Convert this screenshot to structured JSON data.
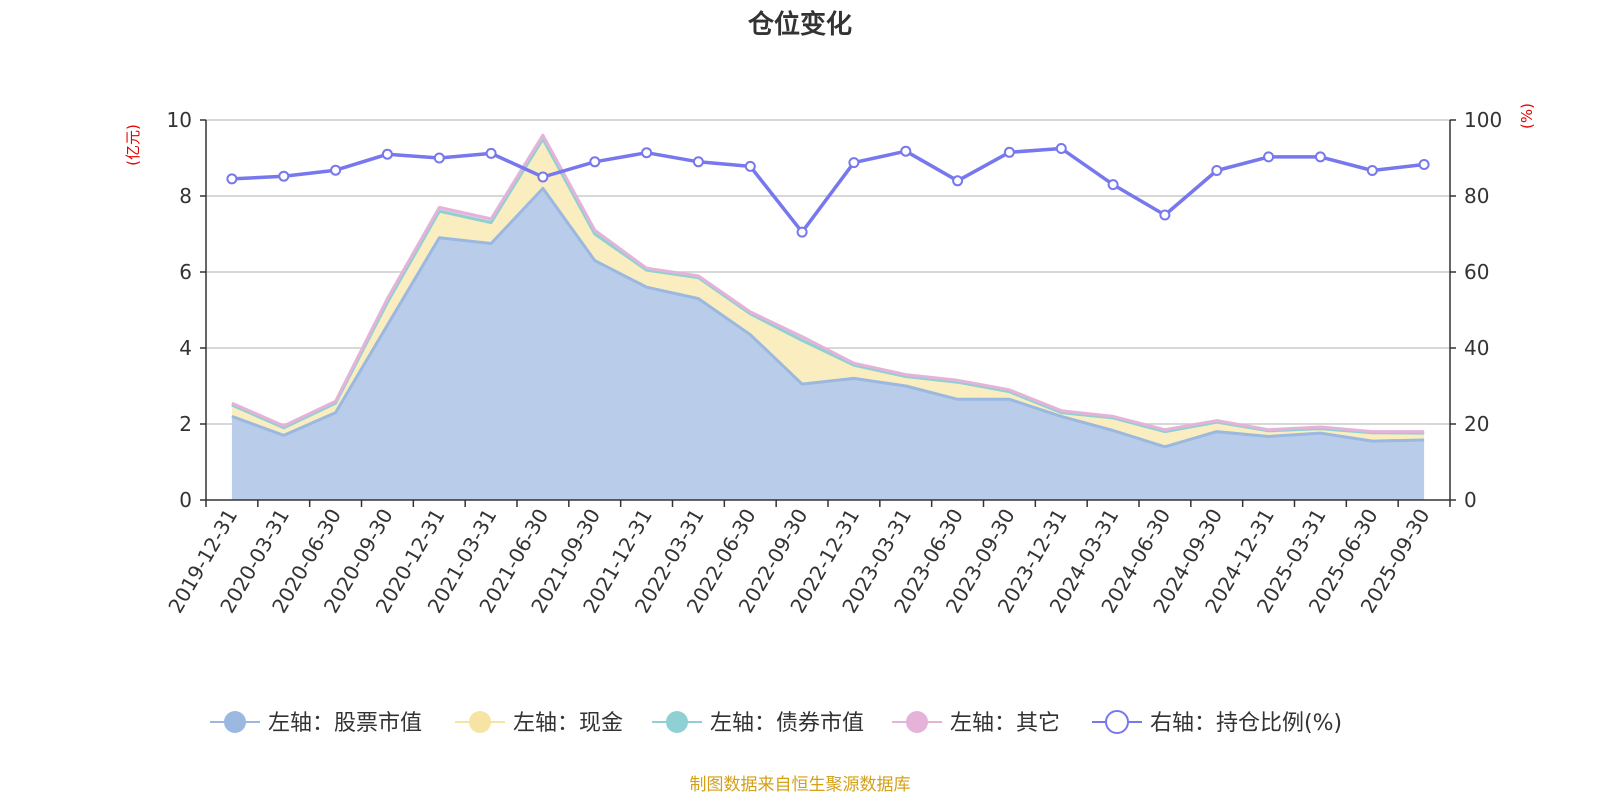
{
  "chart_data": {
    "type": "area",
    "title": "仓位变化",
    "categories": [
      "2019-12-31",
      "2020-03-31",
      "2020-06-30",
      "2020-09-30",
      "2020-12-31",
      "2021-03-31",
      "2021-06-30",
      "2021-09-30",
      "2021-12-31",
      "2022-03-31",
      "2022-06-30",
      "2022-09-30",
      "2022-12-31",
      "2023-03-31",
      "2023-06-30",
      "2023-09-30",
      "2023-12-31",
      "2024-03-31",
      "2024-06-30",
      "2024-09-30",
      "2024-12-31",
      "2025-03-31",
      "2025-06-30",
      "2025-09-30"
    ],
    "left_axis": {
      "unit": "(亿元)",
      "ylim": [
        0,
        10
      ],
      "ticks": [
        "0",
        "2",
        "4",
        "6",
        "8",
        "10"
      ]
    },
    "right_axis": {
      "unit": "(%)",
      "ylim": [
        0,
        100
      ],
      "ticks": [
        "0",
        "20",
        "40",
        "60",
        "80",
        "100"
      ]
    },
    "series": [
      {
        "name": "左轴：股票市值",
        "axis": "left",
        "color": "#9bb8e0",
        "fill": "#b9cdea",
        "values": [
          2.2,
          1.7,
          2.3,
          4.6,
          6.9,
          6.75,
          8.2,
          6.3,
          5.6,
          5.3,
          4.35,
          3.05,
          3.2,
          3.0,
          2.65,
          2.65,
          2.2,
          1.83,
          1.4,
          1.8,
          1.67,
          1.76,
          1.55,
          1.58
        ]
      },
      {
        "name": "左轴：现金",
        "axis": "left",
        "color": "#f7e4a2",
        "fill": "#faedbf",
        "values": [
          0.3,
          0.2,
          0.25,
          0.6,
          0.7,
          0.55,
          1.3,
          0.7,
          0.45,
          0.55,
          0.55,
          1.15,
          0.35,
          0.25,
          0.45,
          0.2,
          0.1,
          0.33,
          0.4,
          0.25,
          0.15,
          0.12,
          0.22,
          0.18
        ]
      },
      {
        "name": "左轴：债券市值",
        "axis": "left",
        "color": "#8fd0d4",
        "fill": "#a9dcdf",
        "values": [
          0,
          0,
          0,
          0,
          0,
          0,
          0,
          0,
          0,
          0,
          0,
          0,
          0,
          0,
          0,
          0,
          0,
          0,
          0,
          0,
          0,
          0,
          0,
          0
        ]
      },
      {
        "name": "左轴：其它",
        "axis": "left",
        "color": "#e5b3d9",
        "fill": "#eec8e3",
        "values": [
          0.05,
          0.05,
          0.05,
          0.1,
          0.1,
          0.1,
          0.1,
          0.1,
          0.05,
          0.05,
          0.05,
          0.1,
          0.05,
          0.05,
          0.05,
          0.05,
          0.05,
          0.04,
          0.05,
          0.04,
          0.03,
          0.04,
          0.03,
          0.04
        ]
      },
      {
        "name": "右轴：持仓比例(%)",
        "axis": "right",
        "color": "#7777ee",
        "values": [
          84.5,
          85.2,
          86.8,
          91.0,
          90.0,
          91.2,
          85.0,
          89.0,
          91.4,
          89.0,
          87.8,
          70.5,
          88.8,
          91.8,
          84.0,
          91.5,
          92.5,
          83.0,
          75.0,
          86.7,
          90.3,
          90.3,
          86.7,
          88.3
        ]
      }
    ]
  },
  "source_note": "制图数据来自恒生聚源数据库"
}
